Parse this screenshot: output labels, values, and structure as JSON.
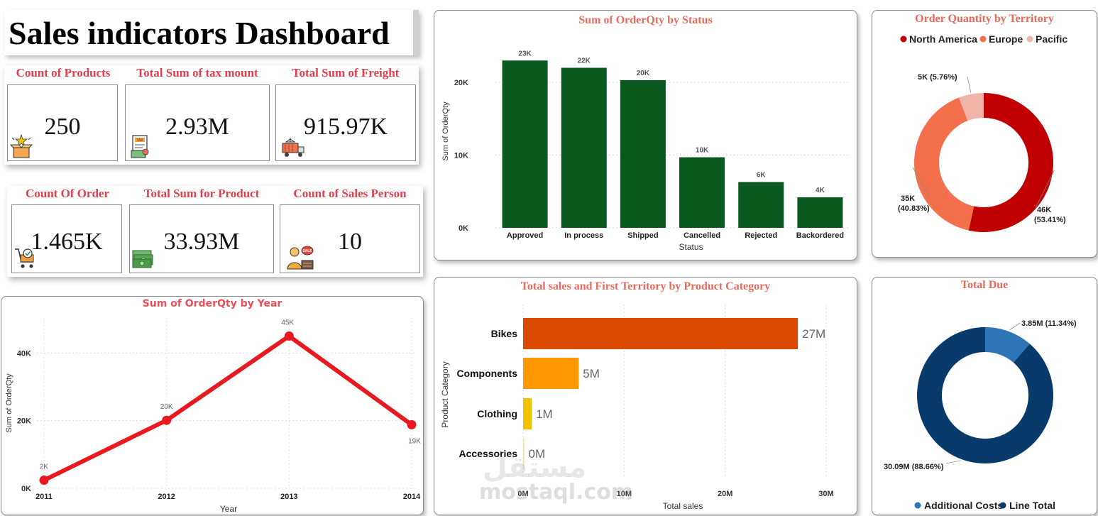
{
  "dashboard_title": "Sales indicators Dashboard",
  "kpis_top": [
    {
      "label": "Count of Products",
      "value": "250",
      "icon": "product-box-icon"
    },
    {
      "label": "Total Sum of tax mount",
      "value": "2.93M",
      "icon": "tax-document-icon"
    },
    {
      "label": "Total Sum of Freight",
      "value": "915.97K",
      "icon": "freight-truck-icon"
    }
  ],
  "kpis_bottom": [
    {
      "label": "Count Of Order",
      "value": "1.465K",
      "icon": "shopping-cart-icon"
    },
    {
      "label": "Total Sum for Product",
      "value": "33.93M",
      "icon": "money-stack-icon"
    },
    {
      "label": "Count of Sales Person",
      "value": "10",
      "icon": "salesperson-icon"
    }
  ],
  "colors": {
    "accent_red": "#e0404b",
    "bar_green": "#0a5a1f",
    "north_america": "#c00000",
    "europe": "#f4704d",
    "pacific": "#f0b5a8",
    "line_red": "#e8191f",
    "bikes": "#d94a00",
    "components": "#ff9800",
    "clothing": "#f2c100",
    "accessories": "#f8e37a",
    "additional_costs": "#2e75b6",
    "line_total": "#083a6b"
  },
  "chart_data": [
    {
      "id": "status",
      "type": "bar",
      "title": "Sum of OrderQty by Status",
      "xlabel": "Status",
      "ylabel": "Sum of OrderQty",
      "categories": [
        "Approved",
        "In process",
        "Shipped",
        "Cancelled",
        "Rejected",
        "Backordered"
      ],
      "values": [
        23000,
        22000,
        20300,
        9700,
        6300,
        4200
      ],
      "data_labels": [
        "23K",
        "22K",
        "20K",
        "10K",
        "6K",
        "4K"
      ],
      "yticks": [
        "0K",
        "10K",
        "20K"
      ],
      "ytick_values": [
        0,
        10000,
        20000
      ],
      "ylim": [
        0,
        24000
      ],
      "grid": true
    },
    {
      "id": "territory",
      "type": "pie",
      "donut": true,
      "title": "Order Quantity by Territory",
      "legend": [
        "North America",
        "Europe",
        "Pacific"
      ],
      "legend_position": "top",
      "values": [
        46,
        35,
        5
      ],
      "data_labels": [
        "46K",
        "35K",
        "5K"
      ],
      "percent_labels": [
        "(53.41%)",
        "(40.83%)",
        "(5.76%)"
      ]
    },
    {
      "id": "year",
      "type": "line",
      "title": "Sum of OrderQty by Year",
      "xlabel": "Year",
      "ylabel": "Sum of OrderQty",
      "x": [
        "2011",
        "2012",
        "2013",
        "2014"
      ],
      "values": [
        2400,
        20100,
        45000,
        18800
      ],
      "data_labels": [
        "2K",
        "20K",
        "45K",
        "19K"
      ],
      "yticks": [
        "0K",
        "20K",
        "40K"
      ],
      "ytick_values": [
        0,
        20000,
        40000
      ],
      "ylim": [
        0,
        47000
      ],
      "grid": true
    },
    {
      "id": "category",
      "type": "bar",
      "orientation": "horizontal",
      "title": "Total sales and First Territory by Product Category",
      "xlabel": "Total sales",
      "ylabel": "Product Category",
      "categories": [
        "Bikes",
        "Components",
        "Clothing",
        "Accessories"
      ],
      "values": [
        27.2,
        5.5,
        0.85,
        0.05
      ],
      "data_labels": [
        "27M",
        "5M",
        "1M",
        "0M"
      ],
      "xticks": [
        "0M",
        "10M",
        "20M",
        "30M"
      ],
      "xtick_values": [
        0,
        10,
        20,
        30
      ],
      "xlim": [
        0,
        30
      ],
      "grid": true
    },
    {
      "id": "due",
      "type": "pie",
      "donut": true,
      "title": "Total Due",
      "legend": [
        "Additional Costs",
        "Line Total"
      ],
      "legend_position": "bottom",
      "values": [
        3.85,
        30.09
      ],
      "labels": [
        "3.85M (11.34%)",
        "30.09M (88.66%)"
      ]
    }
  ],
  "watermark": {
    "latin": "mostaql.com",
    "arabic": "مستقل"
  }
}
